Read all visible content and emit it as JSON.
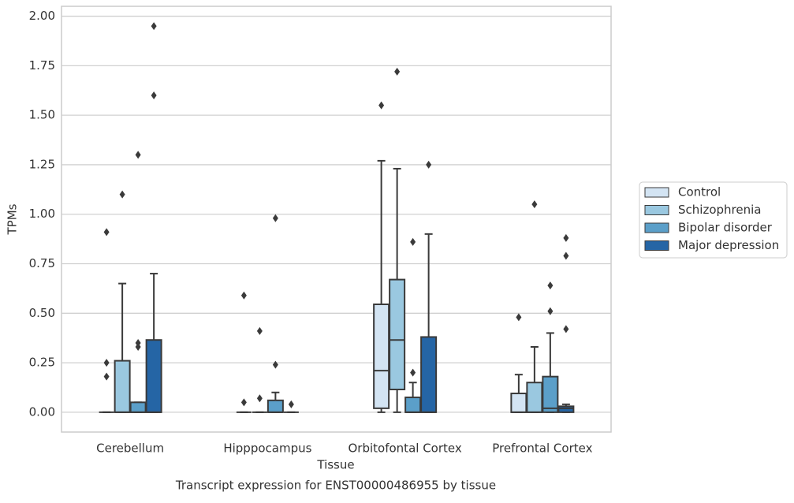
{
  "chart_data": {
    "type": "box",
    "x_label": "Tissue",
    "y_label": "TPMs",
    "caption": "Transcript expression for ENST00000486955 by tissue",
    "categories": [
      "Cerebellum",
      "Hipppocampus",
      "Orbitofontal Cortex",
      "Prefrontal Cortex"
    ],
    "ylim": [
      -0.1,
      2.05
    ],
    "yticks": [
      {
        "value": 0,
        "label": "0.00"
      },
      {
        "value": 0.25,
        "label": "0.25"
      },
      {
        "value": 0.5,
        "label": "0.50"
      },
      {
        "value": 0.75,
        "label": "0.75"
      },
      {
        "value": 1,
        "label": "1.00"
      },
      {
        "value": 1.25,
        "label": "1.25"
      },
      {
        "value": 1.5,
        "label": "1.50"
      },
      {
        "value": 1.75,
        "label": "1.75"
      },
      {
        "value": 2,
        "label": "2.00"
      }
    ],
    "grid": true,
    "legend": "right",
    "series": [
      {
        "name": "Control",
        "color": "#d3e4f3",
        "boxes": [
          {
            "min": 0,
            "q1": 0,
            "median": 0,
            "q3": 0,
            "max": 0,
            "fliers": [
              0.25,
              0.18,
              0.91
            ]
          },
          {
            "min": 0,
            "q1": 0,
            "median": 0,
            "q3": 0,
            "max": 0,
            "fliers": [
              0.05,
              0.59
            ]
          },
          {
            "min": 0,
            "q1": 0.02,
            "median": 0.21,
            "q3": 0.545,
            "max": 1.27,
            "fliers": [
              1.55
            ]
          },
          {
            "min": 0,
            "q1": 0,
            "median": 0,
            "q3": 0.095,
            "max": 0.19,
            "fliers": [
              0.48
            ]
          }
        ]
      },
      {
        "name": "Schizophrenia",
        "color": "#9ac8e0",
        "boxes": [
          {
            "min": 0,
            "q1": 0,
            "median": 0,
            "q3": 0.26,
            "max": 0.65,
            "fliers": [
              1.1
            ]
          },
          {
            "min": 0,
            "q1": 0,
            "median": 0,
            "q3": 0,
            "max": 0,
            "fliers": [
              0.07,
              0.41
            ]
          },
          {
            "min": 0,
            "q1": 0.115,
            "median": 0.365,
            "q3": 0.67,
            "max": 1.23,
            "fliers": [
              1.72
            ]
          },
          {
            "min": 0,
            "q1": 0,
            "median": 0,
            "q3": 0.15,
            "max": 0.33,
            "fliers": [
              1.05
            ]
          }
        ]
      },
      {
        "name": "Bipolar disorder",
        "color": "#5b9fc9",
        "boxes": [
          {
            "min": 0,
            "q1": 0,
            "median": 0,
            "q3": 0.05,
            "max": 0.05,
            "fliers": [
              0.35,
              0.33,
              1.3
            ]
          },
          {
            "min": 0,
            "q1": 0,
            "median": 0,
            "q3": 0.06,
            "max": 0.1,
            "fliers": [
              0.24,
              0.98
            ]
          },
          {
            "min": 0,
            "q1": 0,
            "median": 0,
            "q3": 0.075,
            "max": 0.15,
            "fliers": [
              0.2,
              0.86
            ]
          },
          {
            "min": 0,
            "q1": 0,
            "median": 0.02,
            "q3": 0.18,
            "max": 0.4,
            "fliers": [
              0.51,
              0.64
            ]
          }
        ]
      },
      {
        "name": "Major depression",
        "color": "#2565a5",
        "boxes": [
          {
            "min": 0,
            "q1": 0,
            "median": 0,
            "q3": 0.365,
            "max": 0.7,
            "fliers": [
              1.95,
              1.6
            ]
          },
          {
            "min": 0,
            "q1": 0,
            "median": 0,
            "q3": 0,
            "max": 0,
            "fliers": [
              0.04
            ]
          },
          {
            "min": 0,
            "q1": 0,
            "median": 0,
            "q3": 0.38,
            "max": 0.9,
            "fliers": [
              1.25
            ]
          },
          {
            "min": 0,
            "q1": 0,
            "median": 0.02,
            "q3": 0.03,
            "max": 0.04,
            "fliers": [
              0.42,
              0.79,
              0.88
            ]
          }
        ]
      }
    ]
  }
}
